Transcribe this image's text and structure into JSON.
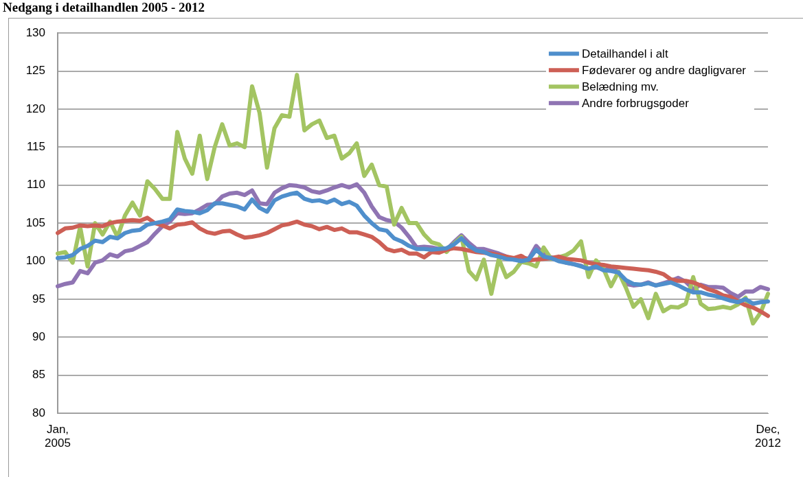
{
  "chart_data": {
    "type": "line",
    "title": "Nedgang i detailhandlen 2005 - 2012",
    "categories": [
      "Jan, 2005",
      null,
      null,
      null,
      null,
      null,
      null,
      null,
      null,
      null,
      null,
      null,
      null,
      null,
      null,
      null,
      null,
      null,
      null,
      null,
      null,
      null,
      null,
      null,
      null,
      null,
      null,
      null,
      null,
      null,
      null,
      null,
      null,
      null,
      null,
      null,
      null,
      null,
      null,
      null,
      null,
      null,
      null,
      null,
      null,
      null,
      null,
      null,
      null,
      null,
      null,
      null,
      null,
      null,
      null,
      null,
      null,
      null,
      null,
      null,
      null,
      null,
      null,
      null,
      null,
      null,
      null,
      null,
      null,
      null,
      null,
      null,
      null,
      null,
      null,
      null,
      null,
      null,
      null,
      null,
      null,
      null,
      null,
      null,
      null,
      null,
      null,
      null,
      null,
      null,
      null,
      null,
      null,
      null,
      null,
      "Dec, 2012"
    ],
    "series": [
      {
        "name": "Detailhandel i alt",
        "color": "#4f8fcc",
        "values": [
          100.4,
          100.5,
          100.8,
          101.6,
          102,
          102.7,
          102.5,
          103.2,
          103,
          103.7,
          104,
          104.1,
          104.8,
          105,
          105.2,
          105.5,
          106.8,
          106.6,
          106.5,
          106.3,
          106.7,
          107.6,
          107.6,
          107.4,
          107.2,
          106.8,
          108.1,
          107,
          106.5,
          108,
          108.5,
          108.8,
          109,
          108.2,
          107.9,
          108,
          107.7,
          108.1,
          107.5,
          107.8,
          107.3,
          106,
          105,
          104.2,
          104,
          103,
          102.6,
          102,
          101.6,
          101.6,
          101.5,
          101.6,
          101.7,
          102.2,
          103,
          102,
          101.4,
          101.2,
          100.8,
          100.6,
          100.3,
          100.2,
          100,
          100.2,
          101.5,
          100.6,
          100.4,
          100,
          99.8,
          99.6,
          99.3,
          99,
          99.3,
          98.8,
          98.7,
          98.5,
          97.5,
          97,
          96.9,
          97.1,
          96.8,
          97,
          97.2,
          96.8,
          96.3,
          95.9,
          95.9,
          95.6,
          95.4,
          95.1,
          94.8,
          94.6,
          95,
          94.4,
          94.6,
          94.7
        ]
      },
      {
        "name": "Fødevarer og andre dagligvarer",
        "color": "#cd5f55",
        "values": [
          103.7,
          104.3,
          104.4,
          104.7,
          104.6,
          104.7,
          104.6,
          105,
          105.2,
          105.3,
          105.4,
          105.3,
          105.7,
          105,
          104.7,
          104.3,
          104.8,
          104.9,
          105.1,
          104.3,
          103.8,
          103.6,
          103.9,
          104,
          103.5,
          103.1,
          103.2,
          103.4,
          103.7,
          104.2,
          104.7,
          104.9,
          105.2,
          104.8,
          104.6,
          104.2,
          104.5,
          104.1,
          104.3,
          103.8,
          103.8,
          103.5,
          103.2,
          102.5,
          101.6,
          101.3,
          101.5,
          101,
          101,
          100.5,
          101.2,
          101.1,
          101.5,
          101.7,
          101.6,
          101.4,
          101.2,
          101.1,
          101,
          100.8,
          100.6,
          100.4,
          100.7,
          100.1,
          100.2,
          100.3,
          100.4,
          100.6,
          100.3,
          100.2,
          100.1,
          99.8,
          99.6,
          99.5,
          99.3,
          99.2,
          99.1,
          99,
          98.9,
          98.8,
          98.6,
          98.3,
          97.6,
          97.4,
          97.4,
          97.2,
          96.8,
          96.3,
          96,
          95.5,
          95.3,
          94.7,
          94.2,
          93.9,
          93.4,
          92.8
        ]
      },
      {
        "name": "Belædning mv.",
        "color": "#a3c462",
        "values": [
          101,
          101.2,
          99.8,
          104.5,
          99.3,
          105,
          103.5,
          105.2,
          103.2,
          106,
          107.7,
          106,
          110.5,
          109.5,
          108.2,
          108.2,
          117,
          113.5,
          111.5,
          116.5,
          110.8,
          115,
          118,
          115.2,
          115.5,
          115,
          123,
          119.5,
          112.3,
          117.5,
          119.2,
          119,
          124.5,
          117.2,
          118,
          118.5,
          116.2,
          116.5,
          113.5,
          114.2,
          115.5,
          111.2,
          112.7,
          110,
          109.8,
          104.8,
          107,
          105,
          105,
          103.5,
          102.5,
          102.2,
          101.2,
          102.3,
          103.2,
          98.7,
          97.6,
          100.2,
          95.7,
          100.3,
          97.9,
          98.6,
          99.9,
          99.7,
          99.3,
          101.8,
          100.3,
          100.5,
          100.8,
          101.4,
          102.6,
          97.9,
          100.1,
          99,
          96.7,
          98.6,
          96.5,
          94,
          95,
          92.5,
          95.7,
          93.4,
          94,
          93.9,
          94.4,
          97.9,
          94.4,
          93.7,
          93.8,
          94,
          93.8,
          94.3,
          95.2,
          91.8,
          93.2,
          95.7
        ]
      },
      {
        "name": "Andre forbrugsgoder",
        "color": "#8f74b3",
        "values": [
          96.7,
          97,
          97.2,
          98.7,
          98.4,
          99.8,
          100.1,
          100.9,
          100.6,
          101.3,
          101.5,
          102,
          102.5,
          103.6,
          104.6,
          105.2,
          106.3,
          106.2,
          106.3,
          106.8,
          107.4,
          107.5,
          108.5,
          108.9,
          109,
          108.7,
          109.3,
          107.6,
          107.5,
          109,
          109.6,
          110,
          109.9,
          109.7,
          109.2,
          109,
          109.3,
          109.7,
          110,
          109.7,
          110.1,
          109,
          107.2,
          105.8,
          105.4,
          105.2,
          104.4,
          103.2,
          101.8,
          101.9,
          101.8,
          101.6,
          101.5,
          102.5,
          103.4,
          102.4,
          101.6,
          101.6,
          101.3,
          101,
          100.6,
          100.2,
          100.5,
          100.3,
          102,
          100.9,
          100.5,
          100.2,
          99.8,
          99.6,
          99.4,
          98.9,
          99.2,
          98.9,
          98.9,
          98.6,
          97,
          96.8,
          96.9,
          97.2,
          96.8,
          97.1,
          97.4,
          97.8,
          97.3,
          96.3,
          96.9,
          96.6,
          96.6,
          96.5,
          95.8,
          95.3,
          96,
          96,
          96.6,
          96.3
        ]
      }
    ],
    "ylim": [
      80,
      130
    ],
    "yticks": [
      80,
      85,
      90,
      95,
      100,
      105,
      110,
      115,
      120,
      125,
      130
    ],
    "grid": "y",
    "legend": "top right",
    "marker": "none",
    "line_style": "solid"
  }
}
